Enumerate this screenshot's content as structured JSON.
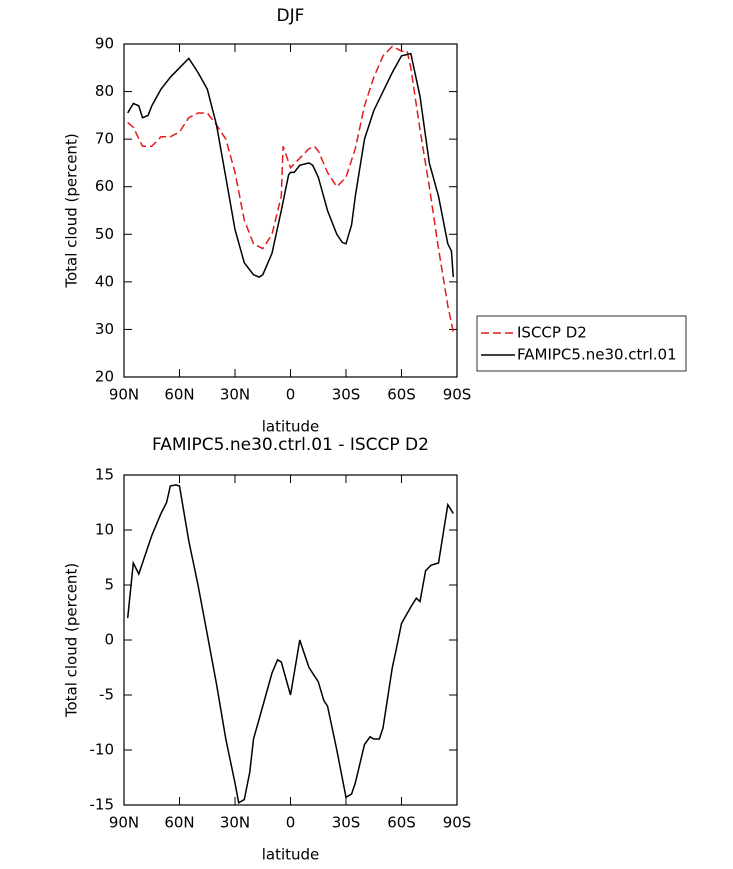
{
  "chart_data": [
    {
      "type": "line",
      "title": "DJF",
      "x_label": "latitude",
      "y_label": "Total cloud (percent)",
      "xlim": [
        90,
        -90
      ],
      "xticks": [
        {
          "value": 90,
          "label": "90N"
        },
        {
          "value": 60,
          "label": "60N"
        },
        {
          "value": 30,
          "label": "30N"
        },
        {
          "value": 0,
          "label": "0"
        },
        {
          "value": -30,
          "label": "30S"
        },
        {
          "value": -60,
          "label": "60S"
        },
        {
          "value": -90,
          "label": "90S"
        }
      ],
      "ylim": [
        20,
        90
      ],
      "yticks": [
        20,
        30,
        40,
        50,
        60,
        70,
        80,
        90
      ],
      "legend": "right",
      "series": [
        {
          "name": "ISCCP D2",
          "color": "#e41a1c",
          "line_style": "dashed",
          "x": [
            88,
            85,
            80,
            75,
            70,
            65,
            60,
            55,
            50,
            45,
            40,
            35,
            30,
            25,
            20,
            15,
            10,
            5,
            4,
            0,
            -5,
            -10,
            -13,
            -15,
            -20,
            -25,
            -30,
            -35,
            -40,
            -45,
            -50,
            -55,
            -60,
            -63,
            -65,
            -70,
            -75,
            -80,
            -85,
            -88
          ],
          "values": [
            73.5,
            72.5,
            68.5,
            68.5,
            70.5,
            70.5,
            71.5,
            74.5,
            75.5,
            75.5,
            73,
            70,
            63,
            53,
            48,
            47,
            50,
            58,
            68.5,
            64,
            66,
            68,
            68.5,
            67.5,
            63,
            60,
            62,
            68,
            77,
            83,
            87.5,
            89.5,
            88.5,
            88.5,
            85,
            72,
            60,
            47,
            35,
            29.5
          ]
        },
        {
          "name": "FAMIPC5.ne30.ctrl.01",
          "color": "#000000",
          "line_style": "solid",
          "x": [
            88,
            85,
            82,
            80,
            77,
            75,
            70,
            65,
            60,
            55,
            50,
            45,
            40,
            35,
            30,
            25,
            20,
            17,
            15,
            10,
            5,
            1,
            0,
            -2,
            -5,
            -10,
            -12,
            -15,
            -20,
            -25,
            -28,
            -30,
            -33,
            -35,
            -40,
            -45,
            -50,
            -55,
            -60,
            -65,
            -70,
            -75,
            -80,
            -85,
            -87,
            -88
          ],
          "values": [
            75.5,
            77.5,
            77,
            74.5,
            75,
            77,
            80.5,
            83,
            85,
            87,
            84,
            80.5,
            73,
            62,
            51,
            44,
            41.5,
            41,
            41.5,
            46,
            55,
            62.5,
            63,
            63,
            64.5,
            65,
            64.5,
            62,
            55,
            50,
            48.3,
            48,
            52,
            58,
            70,
            76,
            80,
            84,
            87.5,
            88,
            79,
            65,
            58,
            48,
            46.5,
            41
          ]
        }
      ]
    },
    {
      "type": "line",
      "title": "FAMIPC5.ne30.ctrl.01 - ISCCP D2",
      "x_label": "latitude",
      "y_label": "Total cloud (percent)",
      "xlim": [
        90,
        -90
      ],
      "xticks": [
        {
          "value": 90,
          "label": "90N"
        },
        {
          "value": 60,
          "label": "60N"
        },
        {
          "value": 30,
          "label": "30N"
        },
        {
          "value": 0,
          "label": "0"
        },
        {
          "value": -30,
          "label": "30S"
        },
        {
          "value": -60,
          "label": "60S"
        },
        {
          "value": -90,
          "label": "90S"
        }
      ],
      "ylim": [
        -15,
        15
      ],
      "yticks": [
        -15,
        -10,
        -5,
        0,
        5,
        10,
        15
      ],
      "series": [
        {
          "color": "#000000",
          "line_style": "solid",
          "x": [
            88,
            85,
            82,
            80,
            75,
            70,
            67,
            65,
            62,
            60,
            55,
            50,
            45,
            40,
            35,
            30,
            28,
            25,
            22,
            20,
            15,
            10,
            7,
            5,
            0,
            -3,
            -5,
            -7,
            -10,
            -15,
            -18,
            -20,
            -25,
            -30,
            -33,
            -35,
            -40,
            -43,
            -45,
            -48,
            -50,
            -55,
            -57,
            -60,
            -65,
            -68,
            -70,
            -73,
            -76,
            -80,
            -85,
            -88
          ],
          "values": [
            2,
            7,
            6,
            7,
            9.5,
            11.5,
            12.5,
            14,
            14.1,
            14,
            9,
            5,
            0.5,
            -4,
            -9,
            -13,
            -14.8,
            -14.5,
            -12,
            -9,
            -6,
            -3,
            -1.8,
            -2,
            -5,
            -2,
            0,
            -1,
            -2.5,
            -3.8,
            -5.5,
            -6,
            -10,
            -14.3,
            -14,
            -13,
            -9.5,
            -8.8,
            -9,
            -9,
            -8,
            -2.5,
            -1,
            1.5,
            3,
            3.8,
            3.5,
            6.3,
            6.8,
            7,
            12.3,
            11.5
          ]
        }
      ]
    }
  ]
}
